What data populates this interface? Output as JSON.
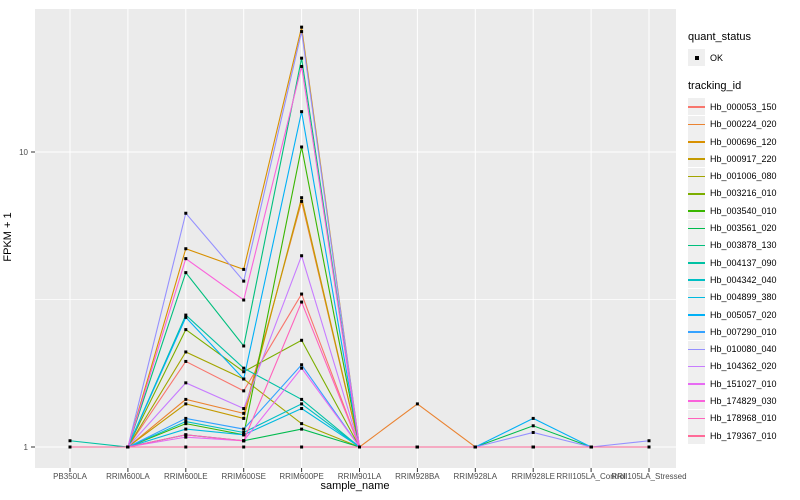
{
  "chart_data": {
    "type": "line",
    "title": "",
    "xlabel": "sample_name",
    "ylabel": "FPKM + 1",
    "yscale": "log",
    "ylim": [
      0.85,
      30
    ],
    "grid": "white-on-gray",
    "panel_background": "#EBEBEB",
    "gridline_color": "#FFFFFF",
    "tick_color": "#333333",
    "tick_label_color": "#4d4d4d",
    "point_color": "#000000",
    "legend_position": "right",
    "legend": {
      "quant_title": "quant_status",
      "ok_label": "OK",
      "tracking_title": "tracking_id"
    },
    "y_ticks": [
      {
        "v": 1,
        "label": "1"
      },
      {
        "v": 10,
        "label": "10"
      }
    ],
    "y_minor_ticks": [
      3.162
    ],
    "x": [
      "PB350LA",
      "RRIM600LA",
      "RRIM600LE",
      "RRIM600SE",
      "RRIM600PE",
      "RRIM901LA",
      "RRIM928BA",
      "RRIM928LA",
      "RRIM928LE",
      "RRII105LA_Control",
      "RRII105LA_Stressed"
    ],
    "series": [
      {
        "name": "Hb_000053_150",
        "color": "#F8766D",
        "values": [
          1,
          1,
          1.95,
          1.55,
          3.3,
          1,
          1,
          1,
          1,
          1,
          1
        ]
      },
      {
        "name": "Hb_000224_020",
        "color": "#EA8331",
        "values": [
          1,
          1,
          1.45,
          1.3,
          6.8,
          1,
          1.4,
          1,
          1,
          1,
          1
        ]
      },
      {
        "name": "Hb_000696_120",
        "color": "#D89000",
        "values": [
          1,
          1,
          4.7,
          4.0,
          26.5,
          1,
          1,
          1,
          1,
          1,
          1
        ]
      },
      {
        "name": "Hb_000917_220",
        "color": "#C49A00",
        "values": [
          1,
          1,
          1.4,
          1.25,
          7.0,
          1,
          1,
          1,
          1,
          1,
          1
        ]
      },
      {
        "name": "Hb_001006_080",
        "color": "#A3A500",
        "values": [
          1,
          1,
          2.1,
          1.7,
          1.2,
          1,
          1,
          1,
          1,
          1,
          1
        ]
      },
      {
        "name": "Hb_003216_010",
        "color": "#7CAE00",
        "values": [
          1,
          1,
          2.5,
          1.8,
          2.3,
          1,
          1,
          1,
          1,
          1,
          1
        ]
      },
      {
        "name": "Hb_003540_010",
        "color": "#39B600",
        "values": [
          1,
          1,
          1.2,
          1.1,
          10.4,
          1,
          1,
          1,
          1,
          1,
          1
        ]
      },
      {
        "name": "Hb_003561_020",
        "color": "#00BB4E",
        "values": [
          1,
          1,
          1.1,
          1.05,
          1.15,
          1,
          1,
          1,
          1.18,
          1,
          1
        ]
      },
      {
        "name": "Hb_003878_130",
        "color": "#00BF7D",
        "values": [
          1,
          1,
          3.9,
          2.2,
          20.8,
          1,
          1,
          1,
          1,
          1,
          1
        ]
      },
      {
        "name": "Hb_004137_090",
        "color": "#00C1A3",
        "values": [
          1.05,
          1,
          2.8,
          1.85,
          1.45,
          1,
          1,
          1,
          1,
          1,
          1
        ]
      },
      {
        "name": "Hb_004342_040",
        "color": "#00BFC4",
        "values": [
          1,
          1,
          1.22,
          1.12,
          1.4,
          1,
          1,
          1,
          1,
          1,
          1
        ]
      },
      {
        "name": "Hb_004899_380",
        "color": "#00BAE0",
        "values": [
          1,
          1,
          1.15,
          1.1,
          1.35,
          1,
          1,
          1,
          1,
          1,
          1
        ]
      },
      {
        "name": "Hb_005057_020",
        "color": "#00B0F6",
        "values": [
          1,
          1,
          2.75,
          1.7,
          13.7,
          1,
          1,
          1,
          1.25,
          1,
          1
        ]
      },
      {
        "name": "Hb_007290_010",
        "color": "#35A2FF",
        "values": [
          1,
          1,
          1.25,
          1.15,
          1.9,
          1,
          1,
          1,
          1,
          1,
          1
        ]
      },
      {
        "name": "Hb_010080_040",
        "color": "#9590FF",
        "values": [
          1,
          1,
          6.2,
          3.65,
          25.6,
          1,
          1,
          1,
          1.12,
          1,
          1.05
        ]
      },
      {
        "name": "Hb_104362_020",
        "color": "#C77CFF",
        "values": [
          1,
          1,
          1.65,
          1.35,
          4.45,
          1,
          1,
          1,
          1,
          1,
          1
        ]
      },
      {
        "name": "Hb_151027_010",
        "color": "#E76BF3",
        "values": [
          1,
          1,
          1.08,
          1.05,
          1.85,
          1,
          1,
          1,
          1,
          1,
          1
        ]
      },
      {
        "name": "Hb_174829_030",
        "color": "#FA62DB",
        "values": [
          1,
          1,
          4.35,
          3.15,
          19.5,
          1,
          1,
          1,
          1,
          1,
          1
        ]
      },
      {
        "name": "Hb_178968_010",
        "color": "#FF62BC",
        "values": [
          1,
          1,
          1.1,
          1.05,
          3.1,
          1,
          1,
          1,
          1,
          1,
          1
        ]
      },
      {
        "name": "Hb_179367_010",
        "color": "#FF6A98",
        "values": [
          1,
          1,
          1,
          1,
          1,
          1,
          1,
          1,
          1,
          1,
          1
        ]
      }
    ]
  }
}
